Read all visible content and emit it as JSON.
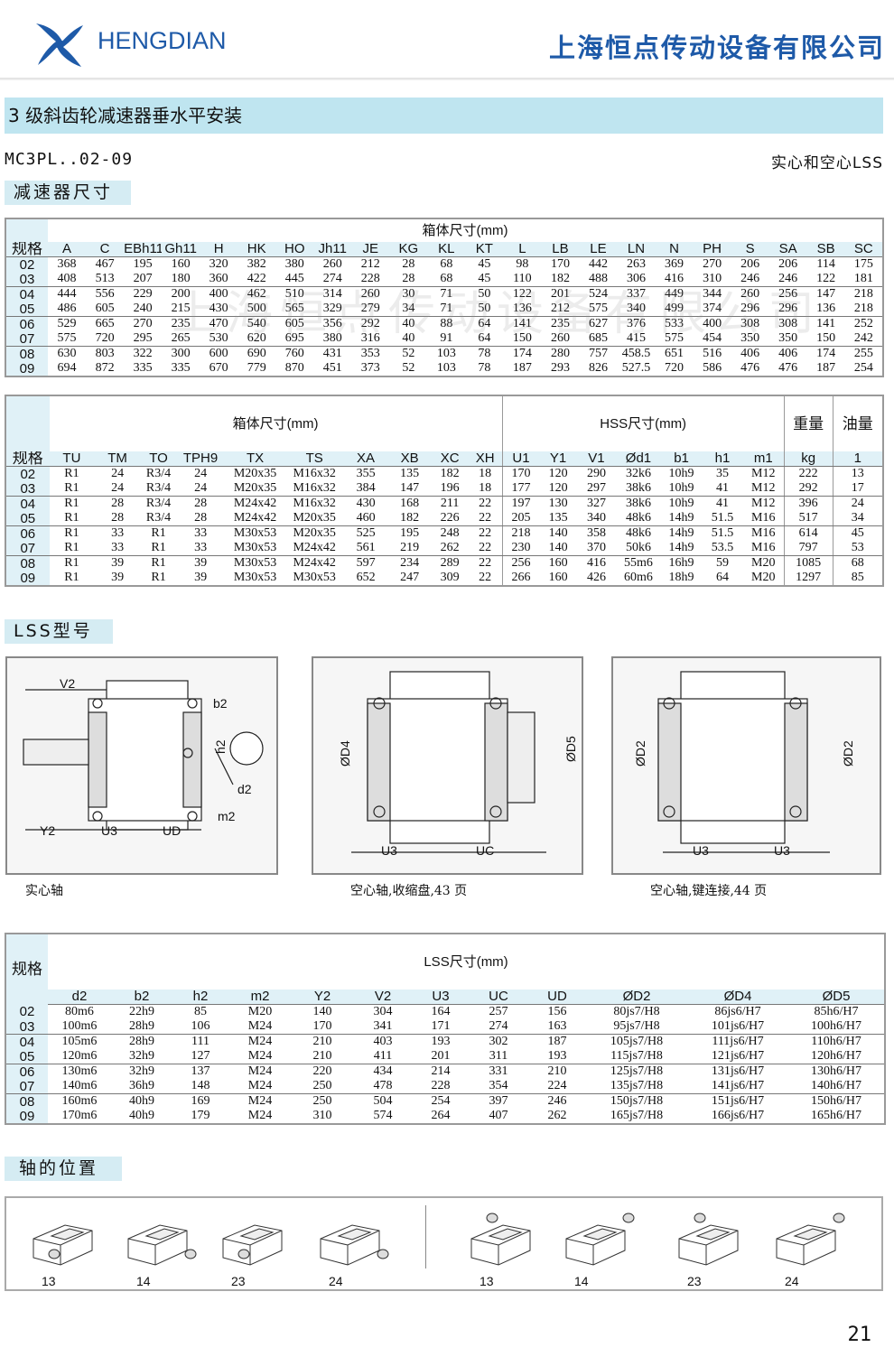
{
  "header": {
    "brand": "HENGDIAN",
    "company": "上海恒点传动设备有限公司",
    "brand_color": "#1e5aa8"
  },
  "section_title": "3 级斜齿轮减速器垂水平安装",
  "model": "MC3PL..02-09",
  "model_note": "实心和空心LSS",
  "watermark": "上海恒点传动设备有限公司",
  "table1": {
    "tab": "减速器尺寸",
    "group": "箱体尺寸(mm)",
    "spec_label": "规格",
    "columns": [
      "A",
      "C",
      "EBh11",
      "Gh11",
      "H",
      "HK",
      "HO",
      "Jh11",
      "JE",
      "KG",
      "KL",
      "KT",
      "L",
      "LB",
      "LE",
      "LN",
      "N",
      "PH",
      "S",
      "SA",
      "SB",
      "SC"
    ],
    "rows": [
      [
        "02",
        "368",
        "467",
        "195",
        "160",
        "320",
        "382",
        "380",
        "260",
        "212",
        "28",
        "68",
        "45",
        "98",
        "170",
        "442",
        "263",
        "369",
        "270",
        "206",
        "206",
        "114",
        "175"
      ],
      [
        "03",
        "408",
        "513",
        "207",
        "180",
        "360",
        "422",
        "445",
        "274",
        "228",
        "28",
        "68",
        "45",
        "110",
        "182",
        "488",
        "306",
        "416",
        "310",
        "246",
        "246",
        "122",
        "181"
      ],
      [
        "04",
        "444",
        "556",
        "229",
        "200",
        "400",
        "462",
        "510",
        "314",
        "260",
        "30",
        "71",
        "50",
        "122",
        "201",
        "524",
        "337",
        "449",
        "344",
        "260",
        "256",
        "147",
        "218"
      ],
      [
        "05",
        "486",
        "605",
        "240",
        "215",
        "430",
        "500",
        "565",
        "329",
        "279",
        "34",
        "71",
        "50",
        "136",
        "212",
        "575",
        "340",
        "499",
        "374",
        "296",
        "296",
        "136",
        "218"
      ],
      [
        "06",
        "529",
        "665",
        "270",
        "235",
        "470",
        "540",
        "605",
        "356",
        "292",
        "40",
        "88",
        "64",
        "141",
        "235",
        "627",
        "376",
        "533",
        "400",
        "308",
        "308",
        "141",
        "252"
      ],
      [
        "07",
        "575",
        "720",
        "295",
        "265",
        "530",
        "620",
        "695",
        "380",
        "316",
        "40",
        "91",
        "64",
        "150",
        "260",
        "685",
        "415",
        "575",
        "454",
        "350",
        "350",
        "150",
        "242"
      ],
      [
        "08",
        "630",
        "803",
        "322",
        "300",
        "600",
        "690",
        "760",
        "431",
        "353",
        "52",
        "103",
        "78",
        "174",
        "280",
        "757",
        "458.5",
        "651",
        "516",
        "406",
        "406",
        "174",
        "255"
      ],
      [
        "09",
        "694",
        "872",
        "335",
        "335",
        "670",
        "779",
        "870",
        "451",
        "373",
        "52",
        "103",
        "78",
        "187",
        "293",
        "826",
        "527.5",
        "720",
        "586",
        "476",
        "476",
        "187",
        "254"
      ]
    ]
  },
  "table2": {
    "groups": [
      "箱体尺寸(mm)",
      "HSS尺寸(mm)",
      "重量",
      "油量"
    ],
    "spec_label": "规格",
    "columns": [
      "TU",
      "TM",
      "TO",
      "TPH9",
      "TX",
      "TS",
      "XA",
      "XB",
      "XC",
      "XH",
      "U1",
      "Y1",
      "V1",
      "Ød1",
      "b1",
      "h1",
      "m1",
      "kg",
      "1"
    ],
    "rows": [
      [
        "02",
        "R1",
        "24",
        "R3/4",
        "24",
        "M20x35",
        "M16x32",
        "355",
        "135",
        "182",
        "18",
        "170",
        "120",
        "290",
        "32k6",
        "10h9",
        "35",
        "M12",
        "222",
        "13"
      ],
      [
        "03",
        "R1",
        "24",
        "R3/4",
        "24",
        "M20x35",
        "M16x32",
        "384",
        "147",
        "196",
        "18",
        "177",
        "120",
        "297",
        "38k6",
        "10h9",
        "41",
        "M12",
        "292",
        "17"
      ],
      [
        "04",
        "R1",
        "28",
        "R3/4",
        "28",
        "M24x42",
        "M16x32",
        "430",
        "168",
        "211",
        "22",
        "197",
        "130",
        "327",
        "38k6",
        "10h9",
        "41",
        "M12",
        "396",
        "24"
      ],
      [
        "05",
        "R1",
        "28",
        "R3/4",
        "28",
        "M24x42",
        "M20x35",
        "460",
        "182",
        "226",
        "22",
        "205",
        "135",
        "340",
        "48k6",
        "14h9",
        "51.5",
        "M16",
        "517",
        "34"
      ],
      [
        "06",
        "R1",
        "33",
        "R1",
        "33",
        "M30x53",
        "M20x35",
        "525",
        "195",
        "248",
        "22",
        "218",
        "140",
        "358",
        "48k6",
        "14h9",
        "51.5",
        "M16",
        "614",
        "45"
      ],
      [
        "07",
        "R1",
        "33",
        "R1",
        "33",
        "M30x53",
        "M24x42",
        "561",
        "219",
        "262",
        "22",
        "230",
        "140",
        "370",
        "50k6",
        "14h9",
        "53.5",
        "M16",
        "797",
        "53"
      ],
      [
        "08",
        "R1",
        "39",
        "R1",
        "39",
        "M30x53",
        "M24x42",
        "597",
        "234",
        "289",
        "22",
        "256",
        "160",
        "416",
        "55m6",
        "16h9",
        "59",
        "M20",
        "1085",
        "68"
      ],
      [
        "09",
        "R1",
        "39",
        "R1",
        "39",
        "M30x53",
        "M30x53",
        "652",
        "247",
        "309",
        "22",
        "266",
        "160",
        "426",
        "60m6",
        "18h9",
        "64",
        "M20",
        "1297",
        "85"
      ]
    ]
  },
  "lss_models": {
    "tab": "LSS型号",
    "drawings": [
      {
        "caption": "实心轴",
        "labels": [
          "V2",
          "b2",
          "h2",
          "d2",
          "m2",
          "Y2",
          "U3",
          "UD"
        ]
      },
      {
        "caption": "空心轴,收缩盘,43 页",
        "labels": [
          "ØD4",
          "ØD5",
          "U3",
          "UC"
        ]
      },
      {
        "caption": "空心轴,键连接,44 页",
        "labels": [
          "ØD2",
          "ØD2",
          "U3",
          "U3"
        ]
      }
    ]
  },
  "table3": {
    "group": "LSS尺寸(mm)",
    "spec_label": "规格",
    "columns": [
      "d2",
      "b2",
      "h2",
      "m2",
      "Y2",
      "V2",
      "U3",
      "UC",
      "UD",
      "ØD2",
      "ØD4",
      "ØD5"
    ],
    "rows": [
      [
        "02",
        "80m6",
        "22h9",
        "85",
        "M20",
        "140",
        "304",
        "164",
        "257",
        "156",
        "80js7/H8",
        "86js6/H7",
        "85h6/H7"
      ],
      [
        "03",
        "100m6",
        "28h9",
        "106",
        "M24",
        "170",
        "341",
        "171",
        "274",
        "163",
        "95js7/H8",
        "101js6/H7",
        "100h6/H7"
      ],
      [
        "04",
        "105m6",
        "28h9",
        "111",
        "M24",
        "210",
        "403",
        "193",
        "302",
        "187",
        "105js7/H8",
        "111js6/H7",
        "110h6/H7"
      ],
      [
        "05",
        "120m6",
        "32h9",
        "127",
        "M24",
        "210",
        "411",
        "201",
        "311",
        "193",
        "115js7/H8",
        "121js6/H7",
        "120h6/H7"
      ],
      [
        "06",
        "130m6",
        "32h9",
        "137",
        "M24",
        "220",
        "434",
        "214",
        "331",
        "210",
        "125js7/H8",
        "131js6/H7",
        "130h6/H7"
      ],
      [
        "07",
        "140m6",
        "36h9",
        "148",
        "M24",
        "250",
        "478",
        "228",
        "354",
        "224",
        "135js7/H8",
        "141js6/H7",
        "140h6/H7"
      ],
      [
        "08",
        "160m6",
        "40h9",
        "169",
        "M24",
        "250",
        "504",
        "254",
        "397",
        "246",
        "150js7/H8",
        "151js6/H7",
        "150h6/H7"
      ],
      [
        "09",
        "170m6",
        "40h9",
        "179",
        "M24",
        "310",
        "574",
        "264",
        "407",
        "262",
        "165js7/H8",
        "166js6/H7",
        "165h6/H7"
      ]
    ]
  },
  "shaft_positions": {
    "tab": "轴的位置",
    "items": [
      "13",
      "14",
      "23",
      "24",
      "13",
      "14",
      "23",
      "24"
    ]
  },
  "page_number": "21"
}
